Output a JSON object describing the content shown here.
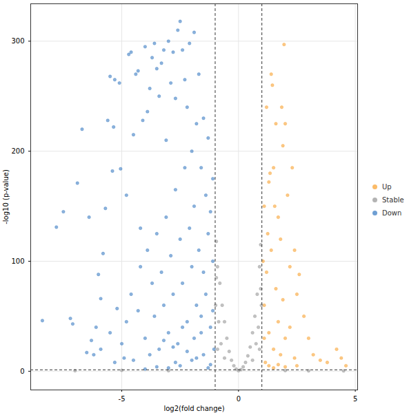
{
  "chart_data": {
    "type": "scatter",
    "x_label": "log2(fold change)",
    "y_label": "-log10 (p-value)",
    "xlim": [
      -8.9,
      5.1
    ],
    "ylim": [
      -17,
      334
    ],
    "xticks": [
      -5,
      0,
      5
    ],
    "yticks": [
      0,
      100,
      200,
      300
    ],
    "grid": true,
    "legend": "right",
    "reference_lines": {
      "x": [
        -1,
        1
      ],
      "y": [
        1.3
      ]
    },
    "series": [
      {
        "name": "Up",
        "color": "#f9a435",
        "x": [
          1.1,
          1.2,
          1.3,
          1.4,
          1.45,
          1.5,
          1.6,
          1.7,
          1.8,
          1.85,
          1.9,
          1.95,
          2.0,
          2.1,
          2.2,
          2.3,
          2.4,
          2.5,
          2.6,
          2.8,
          3.0,
          3.2,
          3.5,
          3.8,
          4.2,
          4.4,
          4.6,
          1.1,
          1.2,
          1.3,
          1.4,
          1.5,
          1.6,
          1.7,
          1.8,
          1.9,
          2.0,
          2.2,
          2.4,
          1.15,
          1.3,
          1.5,
          1.7,
          2.0,
          2.5,
          1.25,
          1.35,
          1.55,
          1.05,
          1.1
        ],
        "values": [
          150,
          240,
          172,
          270,
          260,
          185,
          225,
          140,
          120,
          240,
          205,
          297,
          225,
          160,
          95,
          185,
          110,
          70,
          88,
          50,
          30,
          15,
          10,
          8,
          20,
          12,
          5,
          60,
          90,
          35,
          110,
          20,
          75,
          45,
          15,
          65,
          30,
          40,
          12,
          8,
          5,
          3,
          6,
          4,
          5,
          125,
          180,
          150,
          100,
          30
        ]
      },
      {
        "name": "Stable",
        "color": "#999999",
        "x": [
          -0.95,
          -0.9,
          -0.8,
          -0.7,
          -0.6,
          -0.5,
          -0.4,
          -0.3,
          -0.2,
          -0.1,
          0,
          0.1,
          0.2,
          0.3,
          0.4,
          0.5,
          0.6,
          0.7,
          0.8,
          0.9,
          0.95,
          0.85,
          -0.85,
          -0.9,
          0.9,
          -0.75,
          0.75,
          0.6,
          -0.6,
          -0.98,
          0.98,
          0.95,
          -0.95,
          -3,
          -5,
          2,
          3,
          4.5,
          -7
        ],
        "values": [
          118,
          95,
          80,
          60,
          45,
          30,
          18,
          10,
          5,
          2,
          0.5,
          1.5,
          4,
          8,
          14,
          22,
          35,
          50,
          70,
          95,
          115,
          40,
          45,
          20,
          20,
          25,
          25,
          10,
          12,
          60,
          60,
          75,
          85,
          0.5,
          0.8,
          0.6,
          0.4,
          0.3,
          0.5
        ]
      },
      {
        "name": "Down",
        "color": "#3f7fc4",
        "x": [
          -8.4,
          -7.8,
          -7.5,
          -7.2,
          -7.1,
          -6.9,
          -6.7,
          -6.5,
          -6.4,
          -6.3,
          -6.2,
          -6.0,
          -5.9,
          -5.8,
          -5.7,
          -5.6,
          -5.5,
          -5.4,
          -5.35,
          -5.3,
          -5.2,
          -5.1,
          -5.05,
          -4.9,
          -4.8,
          -4.7,
          -4.6,
          -4.5,
          -4.4,
          -4.3,
          -4.2,
          -4.1,
          -4.0,
          -3.9,
          -3.8,
          -3.7,
          -3.6,
          -3.5,
          -3.4,
          -3.3,
          -3.2,
          -3.1,
          -3.0,
          -2.9,
          -2.8,
          -2.7,
          -2.6,
          -2.5,
          -2.4,
          -2.3,
          -2.2,
          -2.1,
          -2.0,
          -1.9,
          -1.8,
          -1.7,
          -1.6,
          -1.5,
          -1.4,
          -1.3,
          -1.2,
          -1.1,
          -6.1,
          -5.9,
          -5.5,
          -5.3,
          -5.0,
          -4.8,
          -4.6,
          -4.5,
          -4.3,
          -4.2,
          -4.0,
          -3.9,
          -3.8,
          -3.7,
          -3.6,
          -3.5,
          -3.4,
          -3.3,
          -3.2,
          -3.1,
          -3.0,
          -2.9,
          -2.8,
          -2.7,
          -2.6,
          -2.5,
          -2.4,
          -2.3,
          -2.2,
          -2.1,
          -2.0,
          -1.9,
          -1.8,
          -1.7,
          -1.6,
          -1.5,
          -1.4,
          -1.3,
          -1.2,
          -1.1,
          -1.05,
          -1.5,
          -2.0,
          -2.5,
          -3.0,
          -3.5,
          -1.2,
          -1.8,
          -2.2,
          -2.7,
          -1.3,
          -4.0,
          -1.6,
          -2.4,
          -3.2,
          -1.1,
          -1.9,
          -2.8
        ],
        "values": [
          46,
          131,
          145,
          48,
          43,
          171,
          220,
          17,
          140,
          28,
          15,
          88,
          66,
          107,
          148,
          228,
          268,
          182,
          222,
          265,
          57,
          262,
          184,
          12,
          160,
          288,
          290,
          215,
          270,
          273,
          130,
          228,
          295,
          236,
          257,
          285,
          298,
          275,
          250,
          280,
          292,
          210,
          300,
          262,
          290,
          248,
          310,
          318,
          292,
          265,
          240,
          298,
          200,
          308,
          225,
          270,
          185,
          230,
          160,
          212,
          145,
          175,
          40,
          20,
          35,
          8,
          25,
          45,
          70,
          10,
          55,
          95,
          30,
          110,
          15,
          80,
          50,
          125,
          20,
          90,
          60,
          140,
          35,
          105,
          70,
          165,
          25,
          120,
          80,
          185,
          45,
          130,
          95,
          150,
          60,
          110,
          35,
          90,
          70,
          125,
          40,
          100,
          20,
          15,
          10,
          5,
          3,
          4,
          6,
          12,
          18,
          8,
          3,
          2,
          50,
          40,
          28,
          55,
          30,
          22
        ]
      }
    ]
  }
}
